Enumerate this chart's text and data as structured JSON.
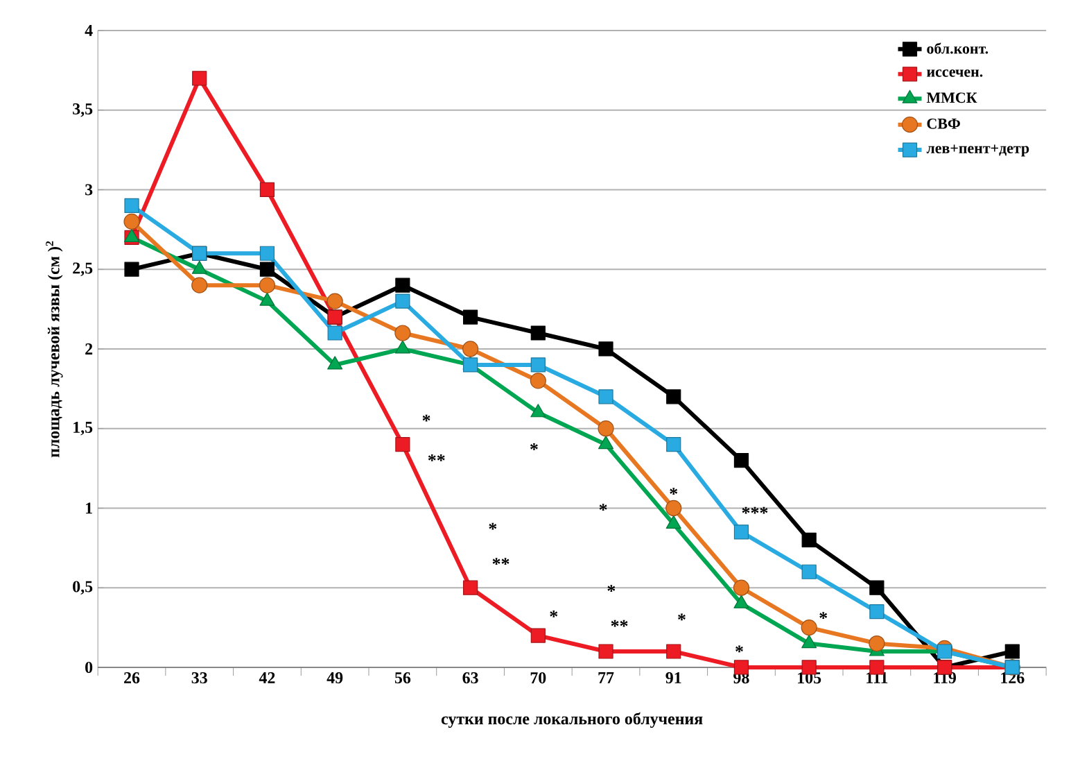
{
  "chart_data": {
    "type": "line",
    "xlabel": "сутки после локального облучения",
    "ylabel": "площадь лучевой язвы (см )$^{2}$",
    "categories": [
      "26",
      "33",
      "42",
      "49",
      "56",
      "63",
      "70",
      "77",
      "91",
      "98",
      "105",
      "111",
      "119",
      "126"
    ],
    "series": [
      {
        "name": "обл.конт.",
        "color": "#000000",
        "marker": "square",
        "values": [
          2.5,
          2.6,
          2.5,
          2.2,
          2.4,
          2.2,
          2.1,
          2.0,
          1.7,
          1.3,
          0.8,
          0.5,
          0.0,
          0.1
        ]
      },
      {
        "name": "иссечен.",
        "color": "#ed1c24",
        "marker": "square",
        "values": [
          2.7,
          3.7,
          3.0,
          2.2,
          1.4,
          0.5,
          0.2,
          0.1,
          0.1,
          0,
          0,
          0,
          0,
          0
        ]
      },
      {
        "name": "ММСК",
        "color": "#00a651",
        "marker": "triangle",
        "values": [
          2.7,
          2.5,
          2.3,
          1.9,
          2.0,
          1.9,
          1.6,
          1.4,
          0.9,
          0.4,
          0.15,
          0.1,
          0.1,
          0
        ]
      },
      {
        "name": "СВФ",
        "color": "#e87722",
        "marker": "circle",
        "values": [
          2.8,
          2.4,
          2.4,
          2.3,
          2.1,
          2.0,
          1.8,
          1.5,
          1.0,
          0.5,
          0.25,
          0.15,
          0.12,
          0
        ]
      },
      {
        "name": "лев+пент+детр",
        "color": "#29abe2",
        "marker": "square",
        "values": [
          2.9,
          2.6,
          2.6,
          2.1,
          2.3,
          1.9,
          1.9,
          1.7,
          1.4,
          0.85,
          0.6,
          0.35,
          0.1,
          0
        ]
      }
    ],
    "ylim": [
      0,
      4
    ],
    "yticks": [
      0,
      {
        "value": 0.5,
        "label": "0,5"
      },
      1,
      {
        "value": 1.5,
        "label": "1,5"
      },
      2,
      {
        "value": 2.5,
        "label": "2,5"
      },
      3,
      {
        "value": 3.5,
        "label": "3,5"
      },
      4
    ],
    "grid": "y",
    "legend": "top right",
    "annotations": [
      "*",
      "**",
      "*",
      "*",
      "**",
      "*",
      "*",
      "*",
      "**",
      "*",
      "*",
      "***",
      "*",
      "*"
    ]
  }
}
